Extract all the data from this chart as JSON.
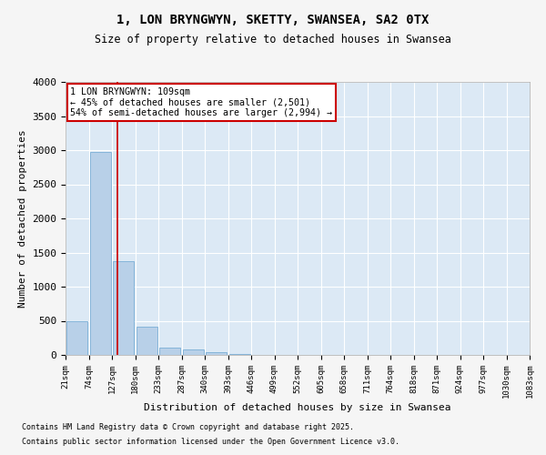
{
  "title1": "1, LON BRYNGWYN, SKETTY, SWANSEA, SA2 0TX",
  "title2": "Size of property relative to detached houses in Swansea",
  "xlabel": "Distribution of detached houses by size in Swansea",
  "ylabel": "Number of detached properties",
  "footnote1": "Contains HM Land Registry data © Crown copyright and database right 2025.",
  "footnote2": "Contains public sector information licensed under the Open Government Licence v3.0.",
  "annotation_line1": "1 LON BRYNGWYN: 109sqm",
  "annotation_line2": "← 45% of detached houses are smaller (2,501)",
  "annotation_line3": "54% of semi-detached houses are larger (2,994) →",
  "bar_values": [
    500,
    2980,
    1370,
    420,
    110,
    75,
    40,
    10,
    2,
    0,
    0,
    0,
    0,
    0,
    0,
    0,
    0,
    0,
    0,
    0
  ],
  "tick_labels": [
    "21sqm",
    "74sqm",
    "127sqm",
    "180sqm",
    "233sqm",
    "287sqm",
    "340sqm",
    "393sqm",
    "446sqm",
    "499sqm",
    "552sqm",
    "605sqm",
    "658sqm",
    "711sqm",
    "764sqm",
    "818sqm",
    "871sqm",
    "924sqm",
    "977sqm",
    "1030sqm",
    "1083sqm"
  ],
  "ylim": [
    0,
    4000
  ],
  "yticks": [
    0,
    500,
    1000,
    1500,
    2000,
    2500,
    3000,
    3500,
    4000
  ],
  "bar_color": "#b8d0e8",
  "bar_edge_color": "#7aaed6",
  "vline_x": 1.72,
  "vline_color": "#cc0000",
  "annotation_box_color": "#cc0000",
  "plot_bg_color": "#dce9f5",
  "fig_bg_color": "#f5f5f5",
  "figsize": [
    6.0,
    5.0
  ],
  "dpi": 100
}
